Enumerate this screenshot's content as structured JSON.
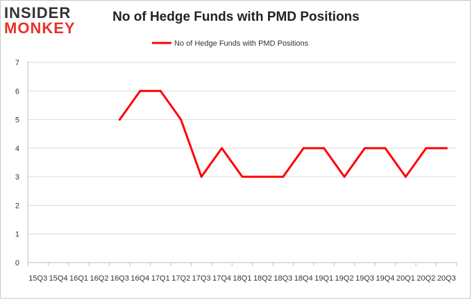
{
  "brand": {
    "line1": "INSIDER",
    "line2": "MONKEY"
  },
  "chart_data": {
    "type": "line",
    "title": "No of Hedge Funds with PMD Positions",
    "xlabel": "",
    "ylabel": "",
    "ylim": [
      0,
      7
    ],
    "yticks": [
      0,
      1,
      2,
      3,
      4,
      5,
      6,
      7
    ],
    "grid": true,
    "legend": "top-center",
    "categories": [
      "15Q3",
      "15Q4",
      "16Q1",
      "16Q2",
      "16Q3",
      "16Q4",
      "17Q1",
      "17Q2",
      "17Q3",
      "17Q4",
      "18Q1",
      "18Q2",
      "18Q3",
      "18Q4",
      "19Q1",
      "19Q2",
      "19Q3",
      "19Q4",
      "20Q1",
      "20Q2",
      "20Q3"
    ],
    "series": [
      {
        "name": "No of Hedge Funds with PMD Positions",
        "color": "#ff0000",
        "values": [
          null,
          null,
          null,
          null,
          5,
          6,
          6,
          5,
          3,
          4,
          3,
          3,
          3,
          4,
          4,
          3,
          4,
          4,
          3,
          4,
          4
        ]
      }
    ]
  }
}
